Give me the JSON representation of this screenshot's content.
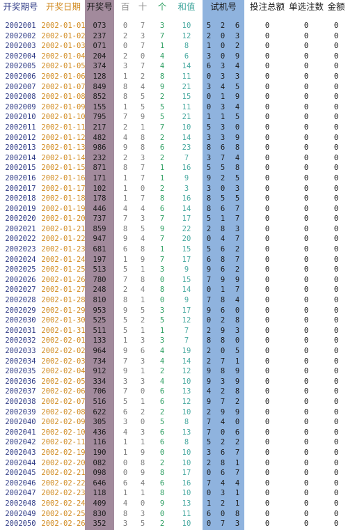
{
  "headers": {
    "qihao": "开奖期号",
    "riqi": "开奖日期",
    "kaijianghao": "开奖号",
    "bai": "百",
    "shi": "十",
    "ge": "个",
    "hezhi": "和值",
    "shijihao": "试机号",
    "touzhu": "投注总额",
    "danxuan": "单选注数",
    "jine": "金额"
  },
  "colors": {
    "kaijianghao_column_bg": "#a28a9c",
    "shijihao_column_bg": "#8fb3de",
    "qihao_text": "#2f3b86",
    "riqi_text": "#d18a1e",
    "ge_text": "#2e9f62",
    "hezhi_text": "#47a9a0"
  },
  "rows": [
    {
      "q": "2002001",
      "d": "2002-01-01",
      "k": "073",
      "b": "0",
      "s": "7",
      "g": "3",
      "h": "10",
      "t1": "5",
      "t2": "2",
      "t3": "6",
      "tz": "0",
      "dx": "0",
      "je": "0"
    },
    {
      "q": "2002002",
      "d": "2002-01-02",
      "k": "237",
      "b": "2",
      "s": "3",
      "g": "7",
      "h": "12",
      "t1": "2",
      "t2": "0",
      "t3": "3",
      "tz": "0",
      "dx": "0",
      "je": "0"
    },
    {
      "q": "2002003",
      "d": "2002-01-03",
      "k": "071",
      "b": "0",
      "s": "7",
      "g": "1",
      "h": "8",
      "t1": "1",
      "t2": "0",
      "t3": "2",
      "tz": "0",
      "dx": "0",
      "je": "0"
    },
    {
      "q": "2002004",
      "d": "2002-01-04",
      "k": "204",
      "b": "2",
      "s": "0",
      "g": "4",
      "h": "6",
      "t1": "3",
      "t2": "0",
      "t3": "9",
      "tz": "0",
      "dx": "0",
      "je": "0"
    },
    {
      "q": "2002005",
      "d": "2002-01-05",
      "k": "374",
      "b": "3",
      "s": "7",
      "g": "4",
      "h": "14",
      "t1": "6",
      "t2": "3",
      "t3": "4",
      "tz": "0",
      "dx": "0",
      "je": "0"
    },
    {
      "q": "2002006",
      "d": "2002-01-06",
      "k": "128",
      "b": "1",
      "s": "2",
      "g": "8",
      "h": "11",
      "t1": "0",
      "t2": "3",
      "t3": "3",
      "tz": "0",
      "dx": "0",
      "je": "0"
    },
    {
      "q": "2002007",
      "d": "2002-01-07",
      "k": "849",
      "b": "8",
      "s": "4",
      "g": "9",
      "h": "21",
      "t1": "3",
      "t2": "4",
      "t3": "5",
      "tz": "0",
      "dx": "0",
      "je": "0"
    },
    {
      "q": "2002008",
      "d": "2002-01-08",
      "k": "852",
      "b": "8",
      "s": "5",
      "g": "2",
      "h": "15",
      "t1": "0",
      "t2": "1",
      "t3": "9",
      "tz": "0",
      "dx": "0",
      "je": "0"
    },
    {
      "q": "2002009",
      "d": "2002-01-09",
      "k": "155",
      "b": "1",
      "s": "5",
      "g": "5",
      "h": "11",
      "t1": "0",
      "t2": "3",
      "t3": "4",
      "tz": "0",
      "dx": "0",
      "je": "0"
    },
    {
      "q": "2002010",
      "d": "2002-01-10",
      "k": "795",
      "b": "7",
      "s": "9",
      "g": "5",
      "h": "21",
      "t1": "1",
      "t2": "1",
      "t3": "5",
      "tz": "0",
      "dx": "0",
      "je": "0"
    },
    {
      "q": "2002011",
      "d": "2002-01-11",
      "k": "217",
      "b": "2",
      "s": "1",
      "g": "7",
      "h": "10",
      "t1": "5",
      "t2": "3",
      "t3": "0",
      "tz": "0",
      "dx": "0",
      "je": "0"
    },
    {
      "q": "2002012",
      "d": "2002-01-12",
      "k": "482",
      "b": "4",
      "s": "8",
      "g": "2",
      "h": "14",
      "t1": "3",
      "t2": "3",
      "t3": "9",
      "tz": "0",
      "dx": "0",
      "je": "0"
    },
    {
      "q": "2002013",
      "d": "2002-01-13",
      "k": "986",
      "b": "9",
      "s": "8",
      "g": "6",
      "h": "23",
      "t1": "8",
      "t2": "6",
      "t3": "8",
      "tz": "0",
      "dx": "0",
      "je": "0"
    },
    {
      "q": "2002014",
      "d": "2002-01-14",
      "k": "232",
      "b": "2",
      "s": "3",
      "g": "2",
      "h": "7",
      "t1": "3",
      "t2": "7",
      "t3": "4",
      "tz": "0",
      "dx": "0",
      "je": "0"
    },
    {
      "q": "2002015",
      "d": "2002-01-15",
      "k": "871",
      "b": "8",
      "s": "7",
      "g": "1",
      "h": "16",
      "t1": "5",
      "t2": "5",
      "t3": "8",
      "tz": "0",
      "dx": "0",
      "je": "0"
    },
    {
      "q": "2002016",
      "d": "2002-01-16",
      "k": "171",
      "b": "1",
      "s": "7",
      "g": "1",
      "h": "9",
      "t1": "9",
      "t2": "2",
      "t3": "5",
      "tz": "0",
      "dx": "0",
      "je": "0"
    },
    {
      "q": "2002017",
      "d": "2002-01-17",
      "k": "102",
      "b": "1",
      "s": "0",
      "g": "2",
      "h": "3",
      "t1": "3",
      "t2": "0",
      "t3": "3",
      "tz": "0",
      "dx": "0",
      "je": "0"
    },
    {
      "q": "2002018",
      "d": "2002-01-18",
      "k": "178",
      "b": "1",
      "s": "7",
      "g": "8",
      "h": "16",
      "t1": "8",
      "t2": "5",
      "t3": "5",
      "tz": "0",
      "dx": "0",
      "je": "0"
    },
    {
      "q": "2002019",
      "d": "2002-01-19",
      "k": "446",
      "b": "4",
      "s": "4",
      "g": "6",
      "h": "14",
      "t1": "8",
      "t2": "6",
      "t3": "7",
      "tz": "0",
      "dx": "0",
      "je": "0"
    },
    {
      "q": "2002020",
      "d": "2002-01-20",
      "k": "737",
      "b": "7",
      "s": "3",
      "g": "7",
      "h": "17",
      "t1": "5",
      "t2": "1",
      "t3": "7",
      "tz": "0",
      "dx": "0",
      "je": "0"
    },
    {
      "q": "2002021",
      "d": "2002-01-21",
      "k": "859",
      "b": "8",
      "s": "5",
      "g": "9",
      "h": "22",
      "t1": "2",
      "t2": "8",
      "t3": "3",
      "tz": "0",
      "dx": "0",
      "je": "0"
    },
    {
      "q": "2002022",
      "d": "2002-01-22",
      "k": "947",
      "b": "9",
      "s": "4",
      "g": "7",
      "h": "20",
      "t1": "0",
      "t2": "4",
      "t3": "7",
      "tz": "0",
      "dx": "0",
      "je": "0"
    },
    {
      "q": "2002023",
      "d": "2002-01-23",
      "k": "681",
      "b": "6",
      "s": "8",
      "g": "1",
      "h": "15",
      "t1": "5",
      "t2": "6",
      "t3": "2",
      "tz": "0",
      "dx": "0",
      "je": "0"
    },
    {
      "q": "2002024",
      "d": "2002-01-24",
      "k": "197",
      "b": "1",
      "s": "9",
      "g": "7",
      "h": "17",
      "t1": "6",
      "t2": "8",
      "t3": "7",
      "tz": "0",
      "dx": "0",
      "je": "0"
    },
    {
      "q": "2002025",
      "d": "2002-01-25",
      "k": "513",
      "b": "5",
      "s": "1",
      "g": "3",
      "h": "9",
      "t1": "9",
      "t2": "6",
      "t3": "2",
      "tz": "0",
      "dx": "0",
      "je": "0"
    },
    {
      "q": "2002026",
      "d": "2002-01-26",
      "k": "780",
      "b": "7",
      "s": "8",
      "g": "0",
      "h": "15",
      "t1": "7",
      "t2": "9",
      "t3": "9",
      "tz": "0",
      "dx": "0",
      "je": "0"
    },
    {
      "q": "2002027",
      "d": "2002-01-27",
      "k": "248",
      "b": "2",
      "s": "4",
      "g": "8",
      "h": "14",
      "t1": "0",
      "t2": "1",
      "t3": "7",
      "tz": "0",
      "dx": "0",
      "je": "0"
    },
    {
      "q": "2002028",
      "d": "2002-01-28",
      "k": "810",
      "b": "8",
      "s": "1",
      "g": "0",
      "h": "9",
      "t1": "7",
      "t2": "8",
      "t3": "4",
      "tz": "0",
      "dx": "0",
      "je": "0"
    },
    {
      "q": "2002029",
      "d": "2002-01-29",
      "k": "953",
      "b": "9",
      "s": "5",
      "g": "3",
      "h": "17",
      "t1": "9",
      "t2": "6",
      "t3": "0",
      "tz": "0",
      "dx": "0",
      "je": "0"
    },
    {
      "q": "2002030",
      "d": "2002-01-30",
      "k": "525",
      "b": "5",
      "s": "2",
      "g": "5",
      "h": "12",
      "t1": "0",
      "t2": "2",
      "t3": "8",
      "tz": "0",
      "dx": "0",
      "je": "0"
    },
    {
      "q": "2002031",
      "d": "2002-01-31",
      "k": "511",
      "b": "5",
      "s": "1",
      "g": "1",
      "h": "7",
      "t1": "2",
      "t2": "9",
      "t3": "3",
      "tz": "0",
      "dx": "0",
      "je": "0"
    },
    {
      "q": "2002032",
      "d": "2002-02-01",
      "k": "133",
      "b": "1",
      "s": "3",
      "g": "3",
      "h": "7",
      "t1": "8",
      "t2": "8",
      "t3": "0",
      "tz": "0",
      "dx": "0",
      "je": "0"
    },
    {
      "q": "2002033",
      "d": "2002-02-02",
      "k": "964",
      "b": "9",
      "s": "6",
      "g": "4",
      "h": "19",
      "t1": "2",
      "t2": "0",
      "t3": "5",
      "tz": "0",
      "dx": "0",
      "je": "0"
    },
    {
      "q": "2002034",
      "d": "2002-02-03",
      "k": "734",
      "b": "7",
      "s": "3",
      "g": "4",
      "h": "14",
      "t1": "2",
      "t2": "7",
      "t3": "1",
      "tz": "0",
      "dx": "0",
      "je": "0"
    },
    {
      "q": "2002035",
      "d": "2002-02-04",
      "k": "912",
      "b": "9",
      "s": "1",
      "g": "2",
      "h": "12",
      "t1": "9",
      "t2": "8",
      "t3": "9",
      "tz": "0",
      "dx": "0",
      "je": "0"
    },
    {
      "q": "2002036",
      "d": "2002-02-05",
      "k": "334",
      "b": "3",
      "s": "3",
      "g": "4",
      "h": "10",
      "t1": "9",
      "t2": "3",
      "t3": "9",
      "tz": "0",
      "dx": "0",
      "je": "0"
    },
    {
      "q": "2002037",
      "d": "2002-02-06",
      "k": "706",
      "b": "7",
      "s": "0",
      "g": "6",
      "h": "13",
      "t1": "4",
      "t2": "2",
      "t3": "8",
      "tz": "0",
      "dx": "0",
      "je": "0"
    },
    {
      "q": "2002038",
      "d": "2002-02-07",
      "k": "516",
      "b": "5",
      "s": "1",
      "g": "6",
      "h": "12",
      "t1": "9",
      "t2": "7",
      "t3": "2",
      "tz": "0",
      "dx": "0",
      "je": "0"
    },
    {
      "q": "2002039",
      "d": "2002-02-08",
      "k": "622",
      "b": "6",
      "s": "2",
      "g": "2",
      "h": "10",
      "t1": "2",
      "t2": "9",
      "t3": "9",
      "tz": "0",
      "dx": "0",
      "je": "0"
    },
    {
      "q": "2002040",
      "d": "2002-02-09",
      "k": "305",
      "b": "3",
      "s": "0",
      "g": "5",
      "h": "8",
      "t1": "7",
      "t2": "4",
      "t3": "0",
      "tz": "0",
      "dx": "0",
      "je": "0"
    },
    {
      "q": "2002041",
      "d": "2002-02-10",
      "k": "436",
      "b": "4",
      "s": "3",
      "g": "6",
      "h": "13",
      "t1": "7",
      "t2": "0",
      "t3": "6",
      "tz": "0",
      "dx": "0",
      "je": "0"
    },
    {
      "q": "2002042",
      "d": "2002-02-11",
      "k": "116",
      "b": "1",
      "s": "1",
      "g": "6",
      "h": "8",
      "t1": "5",
      "t2": "2",
      "t3": "2",
      "tz": "0",
      "dx": "0",
      "je": "0"
    },
    {
      "q": "2002043",
      "d": "2002-02-19",
      "k": "190",
      "b": "1",
      "s": "9",
      "g": "0",
      "h": "10",
      "t1": "3",
      "t2": "6",
      "t3": "7",
      "tz": "0",
      "dx": "0",
      "je": "0"
    },
    {
      "q": "2002044",
      "d": "2002-02-20",
      "k": "082",
      "b": "0",
      "s": "8",
      "g": "2",
      "h": "10",
      "t1": "2",
      "t2": "8",
      "t3": "1",
      "tz": "0",
      "dx": "0",
      "je": "0"
    },
    {
      "q": "2002045",
      "d": "2002-02-21",
      "k": "098",
      "b": "0",
      "s": "9",
      "g": "8",
      "h": "17",
      "t1": "0",
      "t2": "6",
      "t3": "7",
      "tz": "0",
      "dx": "0",
      "je": "0"
    },
    {
      "q": "2002046",
      "d": "2002-02-22",
      "k": "646",
      "b": "6",
      "s": "4",
      "g": "6",
      "h": "16",
      "t1": "7",
      "t2": "4",
      "t3": "4",
      "tz": "0",
      "dx": "0",
      "je": "0"
    },
    {
      "q": "2002047",
      "d": "2002-02-23",
      "k": "118",
      "b": "1",
      "s": "1",
      "g": "8",
      "h": "10",
      "t1": "0",
      "t2": "3",
      "t3": "1",
      "tz": "0",
      "dx": "0",
      "je": "0"
    },
    {
      "q": "2002048",
      "d": "2002-02-24",
      "k": "409",
      "b": "4",
      "s": "0",
      "g": "9",
      "h": "13",
      "t1": "1",
      "t2": "2",
      "t3": "1",
      "tz": "0",
      "dx": "0",
      "je": "0"
    },
    {
      "q": "2002049",
      "d": "2002-02-25",
      "k": "830",
      "b": "8",
      "s": "3",
      "g": "0",
      "h": "11",
      "t1": "6",
      "t2": "0",
      "t3": "8",
      "tz": "0",
      "dx": "0",
      "je": "0"
    },
    {
      "q": "2002050",
      "d": "2002-02-26",
      "k": "352",
      "b": "3",
      "s": "5",
      "g": "2",
      "h": "10",
      "t1": "0",
      "t2": "7",
      "t3": "3",
      "tz": "0",
      "dx": "0",
      "je": "0"
    }
  ]
}
